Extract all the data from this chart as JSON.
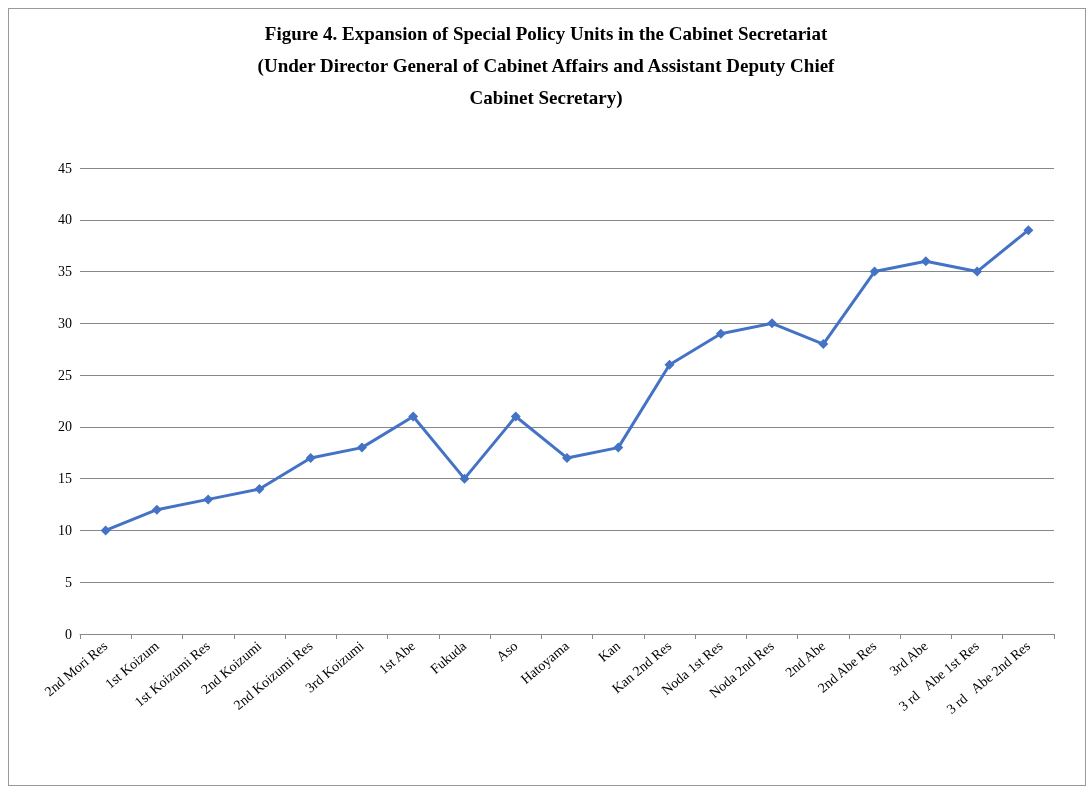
{
  "chart_data": {
    "type": "line",
    "title": "Figure 4. Expansion of Special Policy Units in the Cabinet Secretariat\n(Under Director General of Cabinet Affairs and Assistant Deputy Chief\nCabinet Secretary)",
    "categories": [
      "2nd Mori Res",
      "1st Koizum",
      "1st Koizumi Res",
      "2nd Koizumi",
      "2nd Koizumi Res",
      "3rd Koizumi",
      "1st Abe",
      "Fukuda",
      "Aso",
      "Hatoyama",
      "Kan",
      "Kan 2nd Res",
      "Noda 1st Res",
      "Noda 2nd Res",
      "2nd Abe",
      "2nd Abe Res",
      "3rd Abe",
      "3 rd   Abe 1st Res",
      "3 rd   Abe 2nd Res"
    ],
    "series": [
      {
        "color": "#4472c4",
        "values": [
          10,
          12,
          13,
          14,
          17,
          18,
          21,
          15,
          21,
          17,
          18,
          26,
          29,
          30,
          28,
          35,
          36,
          35,
          39
        ]
      }
    ],
    "ylim": [
      0,
      45
    ],
    "yticks": [
      0,
      5,
      10,
      15,
      20,
      25,
      30,
      35,
      40,
      45
    ],
    "grid": "y",
    "marker": "diamond",
    "line_style": "solid"
  }
}
